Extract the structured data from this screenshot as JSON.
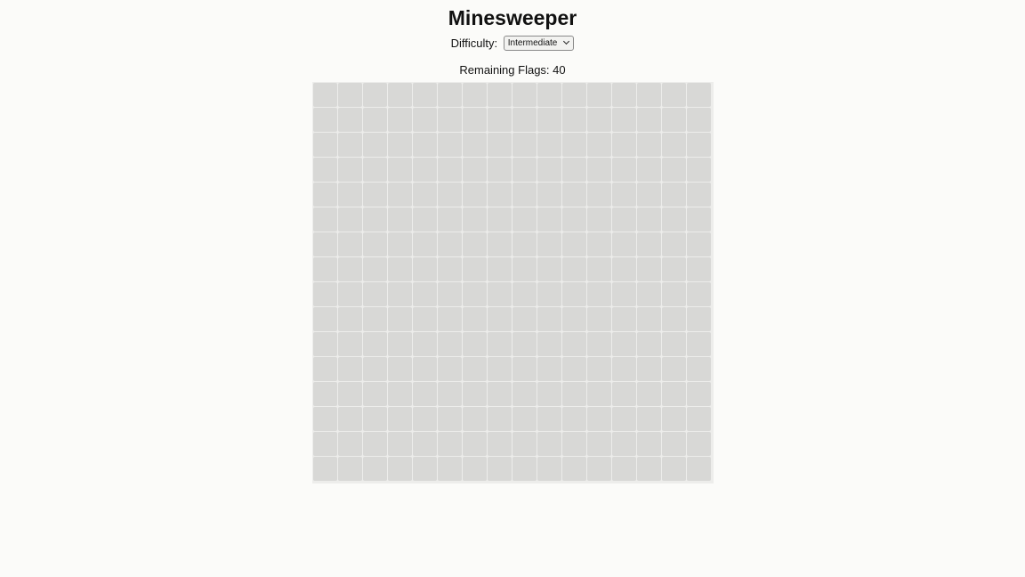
{
  "game": {
    "title": "Minesweeper",
    "difficulty_label": "Difficulty:",
    "difficulty_selected": "Intermediate",
    "flags_label": "Remaining Flags:",
    "remaining_flags": "40",
    "board": {
      "rows": 16,
      "cols": 16,
      "cell_state": "hidden"
    },
    "colors": {
      "background": "#fbfbf9",
      "cell_hidden": "#d8d8d6"
    }
  }
}
